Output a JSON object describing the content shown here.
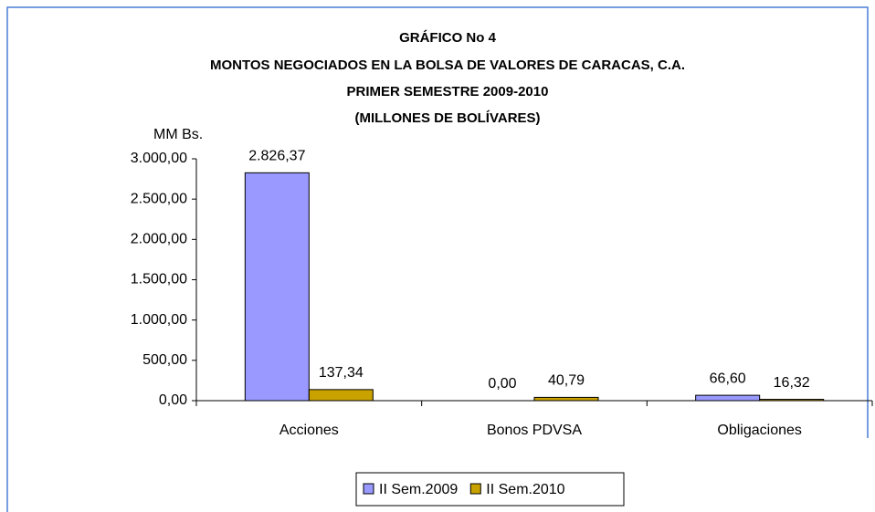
{
  "chart_data": {
    "type": "bar",
    "title": [
      "GRÁFICO No 4",
      "MONTOS NEGOCIADOS EN LA BOLSA DE VALORES DE CARACAS, C.A.",
      "PRIMER SEMESTRE 2009-2010",
      "(MILLONES DE BOLÍVARES)"
    ],
    "y_label": "MM Bs.",
    "categories": [
      "Acciones",
      "Bonos PDVSA",
      "Obligaciones"
    ],
    "series": [
      {
        "name": "II Sem.2009",
        "color": "#9999ff",
        "values": [
          2826.37,
          0,
          66.6
        ],
        "value_labels": [
          "2.826,37",
          "0,00",
          "66,60"
        ]
      },
      {
        "name": "II Sem.2010",
        "color": "#c9a200",
        "values": [
          137.34,
          40.79,
          16.32
        ],
        "value_labels": [
          "137,34",
          "40,79",
          "16,32"
        ]
      }
    ],
    "ylim": [
      0,
      3000
    ],
    "yticks": [
      {
        "value": 0,
        "label": "0,00"
      },
      {
        "value": 500,
        "label": "500,00"
      },
      {
        "value": 1000,
        "label": "1.000,00"
      },
      {
        "value": 1500,
        "label": "1.500,00"
      },
      {
        "value": 2000,
        "label": "2.000,00"
      },
      {
        "value": 2500,
        "label": "2.500,00"
      },
      {
        "value": 3000,
        "label": "3.000,00"
      }
    ],
    "grid": false,
    "legend": "bottom"
  }
}
